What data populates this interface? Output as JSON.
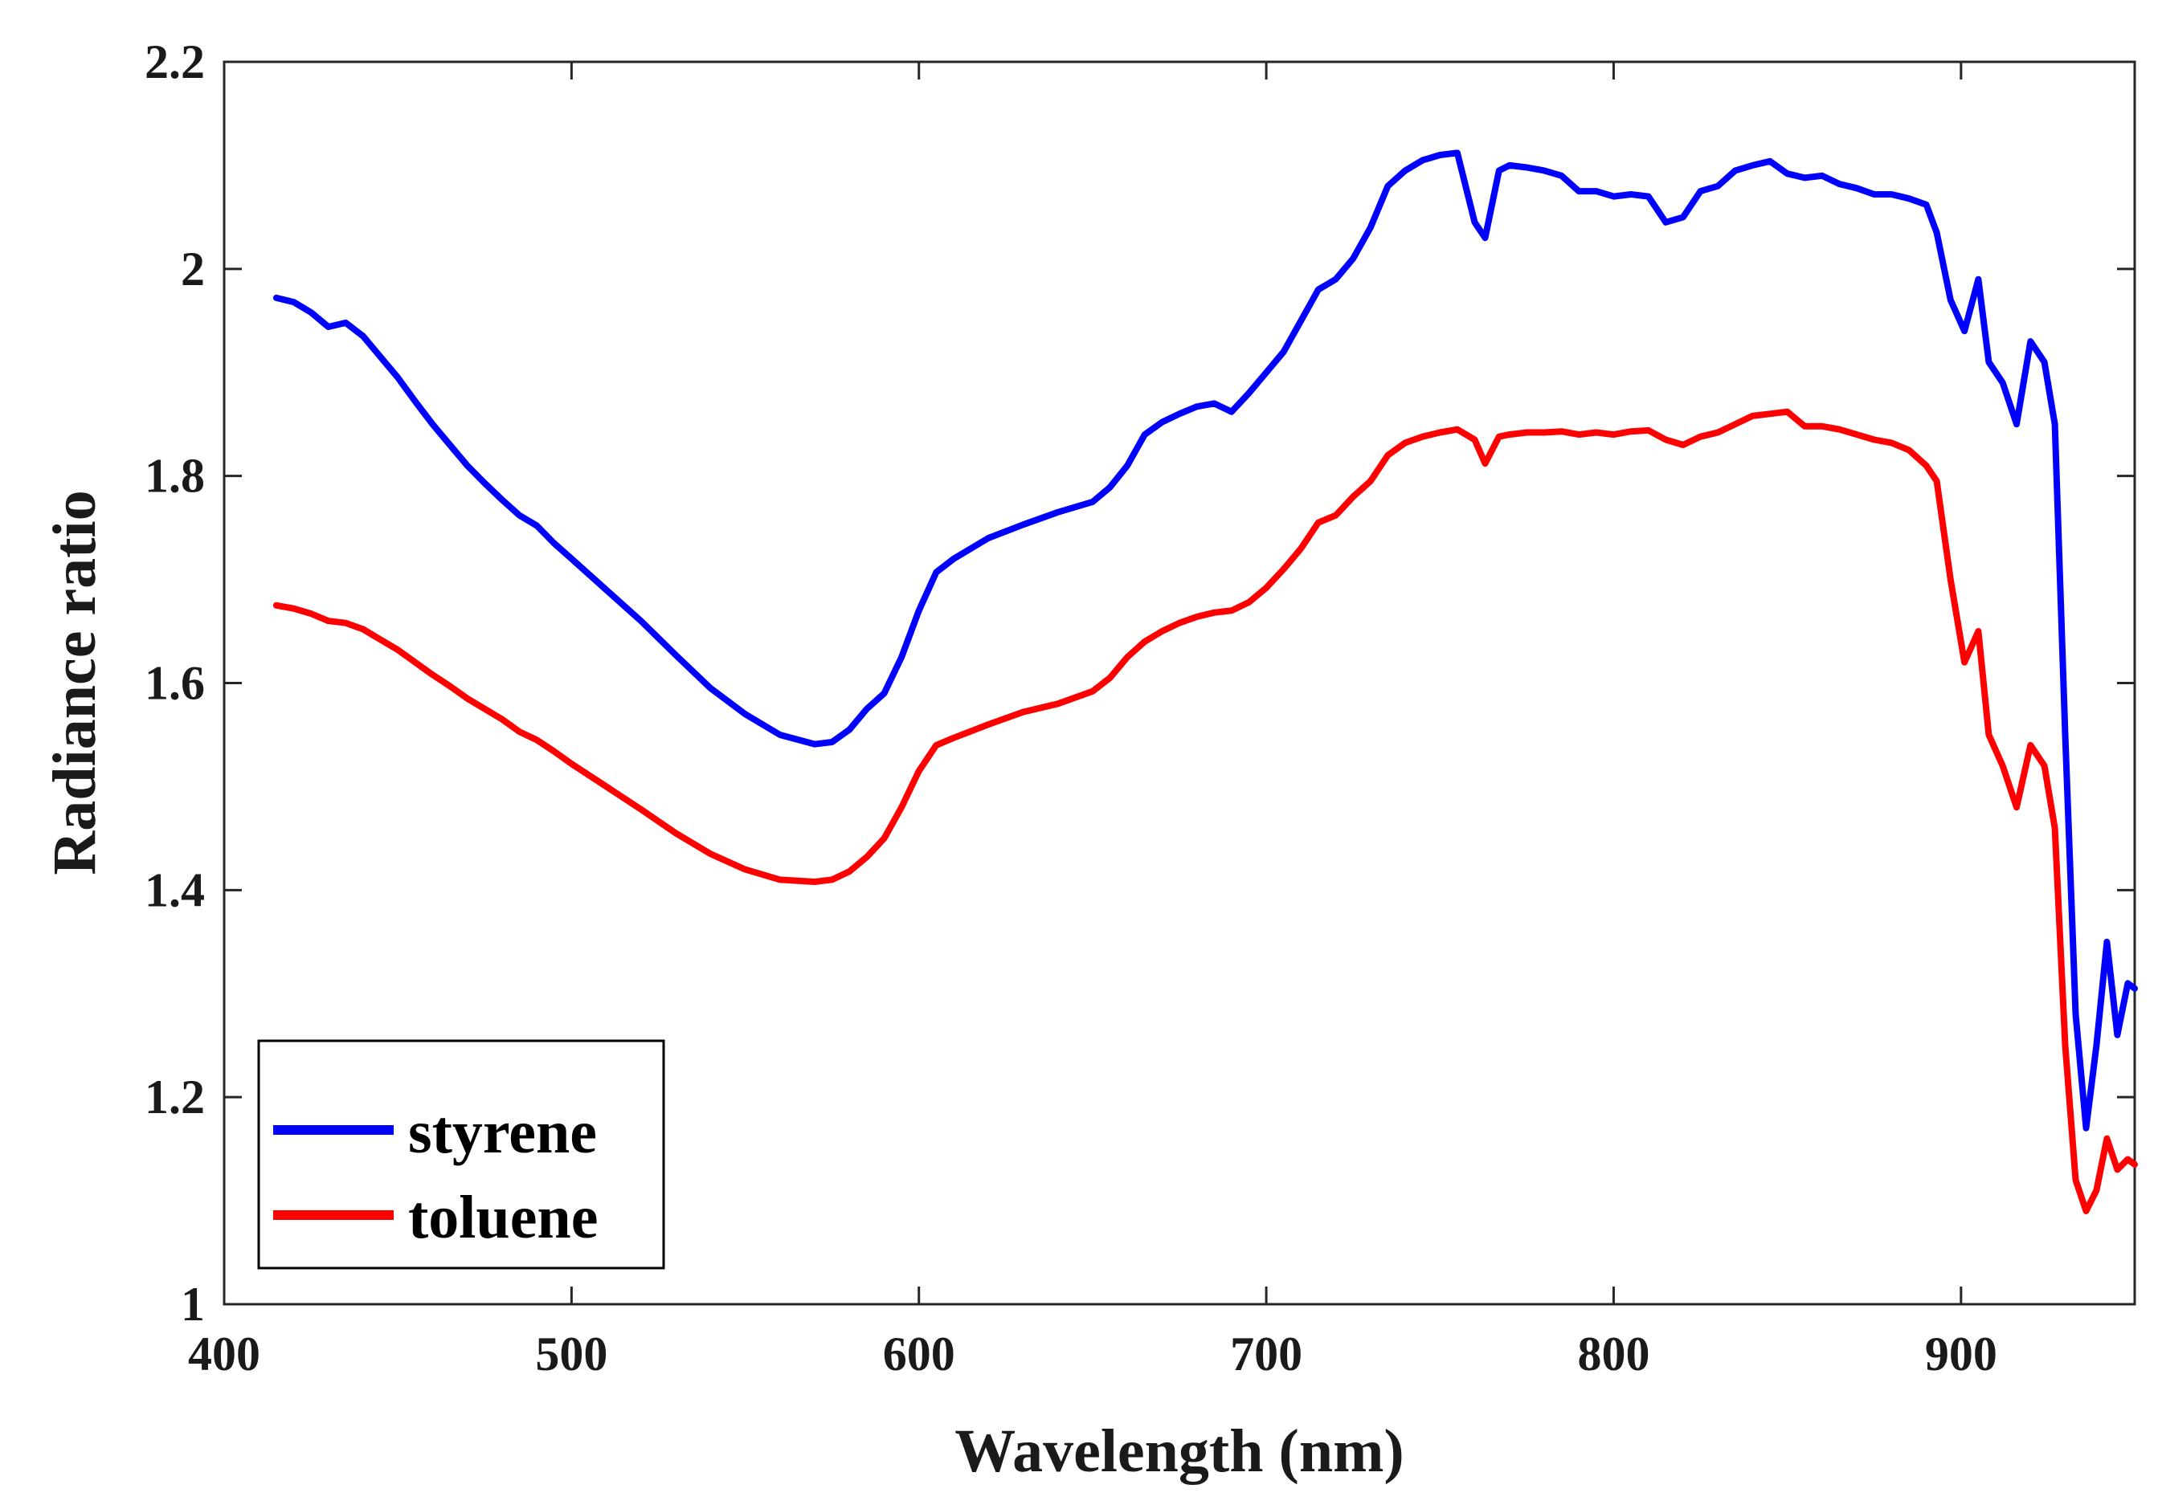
{
  "chart_data": {
    "type": "line",
    "title": "",
    "xlabel": "Wavelength (nm)",
    "ylabel": "Radiance ratio",
    "xlim": [
      400,
      950
    ],
    "ylim": [
      1,
      2.2
    ],
    "xticks": [
      400,
      500,
      600,
      700,
      800,
      900
    ],
    "xtick_labels": [
      "400",
      "500",
      "600",
      "700",
      "800",
      "900"
    ],
    "yticks": [
      1,
      1.2,
      1.4,
      1.6,
      1.8,
      2,
      2.2
    ],
    "ytick_labels": [
      "1",
      "1.2",
      "1.4",
      "1.6",
      "1.8",
      "2",
      "2.2"
    ],
    "grid": false,
    "legend_position": "bottom-left",
    "series": [
      {
        "name": "styrene",
        "color": "#0000ff",
        "x": [
          415,
          420,
          425,
          430,
          435,
          440,
          445,
          450,
          455,
          460,
          465,
          470,
          475,
          480,
          485,
          490,
          495,
          500,
          510,
          520,
          530,
          540,
          550,
          560,
          570,
          575,
          580,
          585,
          590,
          595,
          600,
          605,
          610,
          620,
          630,
          640,
          650,
          655,
          660,
          665,
          670,
          675,
          680,
          685,
          690,
          695,
          700,
          705,
          710,
          715,
          720,
          725,
          730,
          735,
          740,
          745,
          750,
          755,
          760,
          763,
          767,
          770,
          775,
          780,
          785,
          790,
          795,
          800,
          805,
          810,
          815,
          820,
          825,
          830,
          835,
          840,
          845,
          850,
          855,
          860,
          865,
          870,
          875,
          880,
          885,
          890,
          893,
          897,
          901,
          905,
          908,
          912,
          916,
          920,
          924,
          927,
          930,
          933,
          936,
          939,
          942,
          945,
          948,
          950
        ],
        "y": [
          1.972,
          1.968,
          1.958,
          1.944,
          1.948,
          1.935,
          1.915,
          1.895,
          1.872,
          1.85,
          1.83,
          1.81,
          1.793,
          1.777,
          1.762,
          1.752,
          1.735,
          1.72,
          1.69,
          1.66,
          1.627,
          1.595,
          1.57,
          1.55,
          1.541,
          1.543,
          1.555,
          1.575,
          1.59,
          1.625,
          1.67,
          1.707,
          1.72,
          1.74,
          1.753,
          1.765,
          1.775,
          1.789,
          1.81,
          1.84,
          1.852,
          1.86,
          1.867,
          1.87,
          1.862,
          1.88,
          1.9,
          1.92,
          1.95,
          1.98,
          1.99,
          2.01,
          2.04,
          2.08,
          2.095,
          2.105,
          2.11,
          2.112,
          2.045,
          2.03,
          2.095,
          2.1,
          2.098,
          2.095,
          2.09,
          2.075,
          2.075,
          2.07,
          2.072,
          2.07,
          2.045,
          2.05,
          2.075,
          2.08,
          2.095,
          2.1,
          2.104,
          2.092,
          2.088,
          2.09,
          2.082,
          2.078,
          2.072,
          2.072,
          2.068,
          2.062,
          2.035,
          1.97,
          1.94,
          1.99,
          1.91,
          1.89,
          1.85,
          1.93,
          1.91,
          1.85,
          1.55,
          1.28,
          1.17,
          1.25,
          1.35,
          1.26,
          1.31,
          1.305
        ]
      },
      {
        "name": "toluene",
        "color": "#ff0000",
        "x": [
          415,
          420,
          425,
          430,
          435,
          440,
          445,
          450,
          455,
          460,
          465,
          470,
          475,
          480,
          485,
          490,
          495,
          500,
          510,
          520,
          530,
          540,
          550,
          560,
          570,
          575,
          580,
          585,
          590,
          595,
          600,
          605,
          610,
          620,
          630,
          640,
          650,
          655,
          660,
          665,
          670,
          675,
          680,
          685,
          690,
          695,
          700,
          705,
          710,
          715,
          720,
          725,
          730,
          735,
          740,
          745,
          750,
          755,
          760,
          763,
          767,
          770,
          775,
          780,
          785,
          790,
          795,
          800,
          805,
          810,
          815,
          820,
          825,
          830,
          835,
          840,
          845,
          850,
          855,
          860,
          865,
          870,
          875,
          880,
          885,
          890,
          893,
          897,
          901,
          905,
          908,
          912,
          916,
          920,
          924,
          927,
          930,
          933,
          936,
          939,
          942,
          945,
          948,
          950
        ],
        "y": [
          1.675,
          1.672,
          1.667,
          1.66,
          1.658,
          1.652,
          1.642,
          1.632,
          1.62,
          1.608,
          1.597,
          1.585,
          1.575,
          1.565,
          1.553,
          1.545,
          1.534,
          1.522,
          1.5,
          1.478,
          1.455,
          1.435,
          1.42,
          1.41,
          1.408,
          1.41,
          1.418,
          1.432,
          1.45,
          1.48,
          1.515,
          1.54,
          1.547,
          1.56,
          1.572,
          1.58,
          1.592,
          1.605,
          1.625,
          1.64,
          1.65,
          1.658,
          1.664,
          1.668,
          1.67,
          1.678,
          1.692,
          1.71,
          1.73,
          1.755,
          1.762,
          1.78,
          1.795,
          1.82,
          1.832,
          1.838,
          1.842,
          1.845,
          1.835,
          1.812,
          1.838,
          1.84,
          1.842,
          1.842,
          1.843,
          1.84,
          1.842,
          1.84,
          1.843,
          1.844,
          1.835,
          1.83,
          1.838,
          1.842,
          1.85,
          1.858,
          1.86,
          1.862,
          1.848,
          1.848,
          1.845,
          1.84,
          1.835,
          1.832,
          1.825,
          1.81,
          1.795,
          1.7,
          1.62,
          1.65,
          1.55,
          1.52,
          1.48,
          1.54,
          1.52,
          1.46,
          1.25,
          1.12,
          1.09,
          1.11,
          1.16,
          1.13,
          1.14,
          1.135
        ]
      }
    ]
  }
}
